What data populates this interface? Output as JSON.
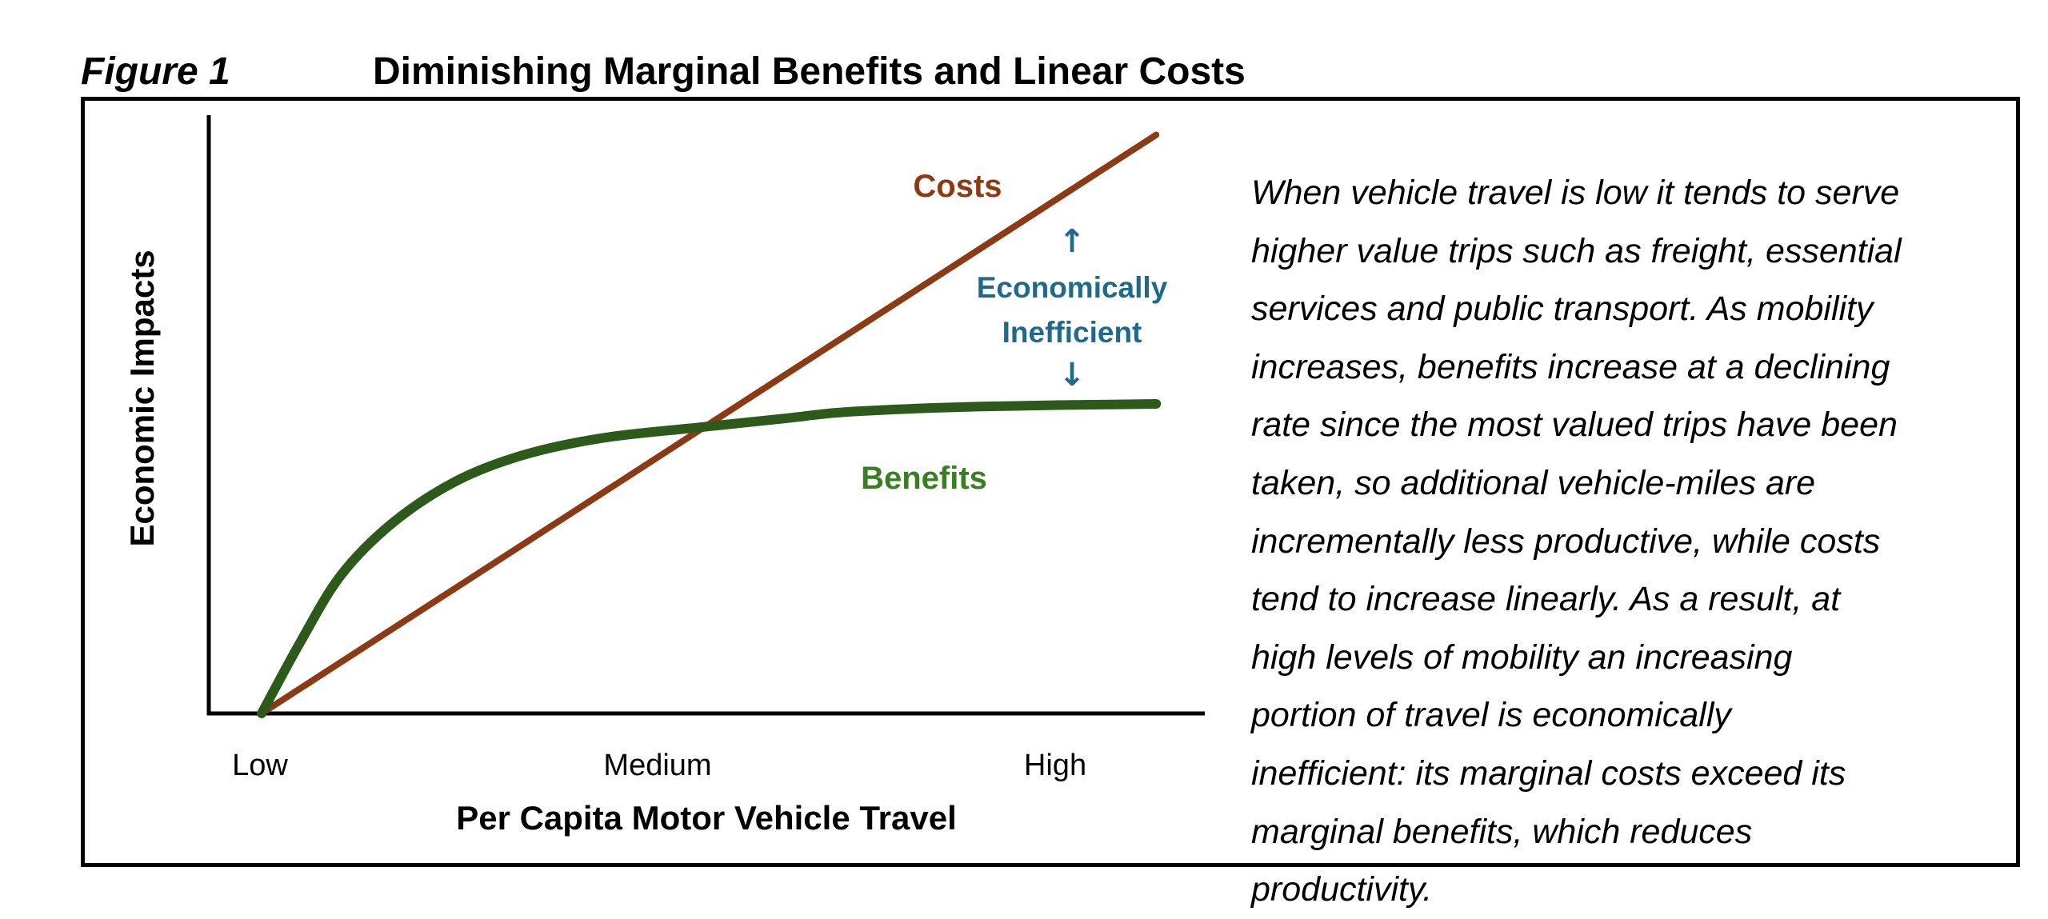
{
  "figure": {
    "label": "Figure 1",
    "title": "Diminishing Marginal Benefits and Linear Costs"
  },
  "description_lines": [
    "When vehicle travel is low it tends to serve",
    "higher value trips such as freight, essential",
    "services and public transport. As mobility",
    "increases, benefits increase at a declining",
    "rate since the most valued trips have been",
    "taken, so additional vehicle-miles are",
    "incrementally less productive, while costs",
    "tend to increase linearly. As a result, at",
    "high levels of mobility an increasing",
    "portion of travel is economically",
    "inefficient: its marginal costs exceed its",
    "marginal benefits, which reduces",
    "productivity."
  ],
  "chart_data": {
    "type": "line",
    "title": "Diminishing Marginal Benefits and Linear Costs",
    "xlabel": "Per Capita Motor Vehicle Travel",
    "ylabel": "Economic Impacts",
    "x_tick_labels": [
      "Low",
      "Medium",
      "High"
    ],
    "x_tick_values": [
      0,
      1,
      2
    ],
    "xlim": [
      -0.13,
      2.4
    ],
    "ylim": [
      0,
      4.6
    ],
    "grid": false,
    "series": [
      {
        "name": "Costs",
        "color": "#8B3A14",
        "label_color": "#8B3A14",
        "x": [
          0,
          2.25
        ],
        "y": [
          0,
          4.43
        ]
      },
      {
        "name": "Benefits",
        "color": "#2D5A1B",
        "label_color": "#3C7D23",
        "x": [
          0,
          0.1,
          0.2,
          0.33,
          0.49,
          0.66,
          0.86,
          1.1,
          1.32,
          1.48,
          1.81,
          2.25
        ],
        "y": [
          0,
          0.56,
          1.06,
          1.46,
          1.78,
          1.98,
          2.11,
          2.19,
          2.26,
          2.31,
          2.35,
          2.37
        ]
      }
    ],
    "annotations": [
      {
        "text_line1": "Economically",
        "text_line2": "Inefficient",
        "arrow_up": "↑",
        "arrow_down": "↓",
        "color": "#1F6A8A"
      }
    ]
  }
}
